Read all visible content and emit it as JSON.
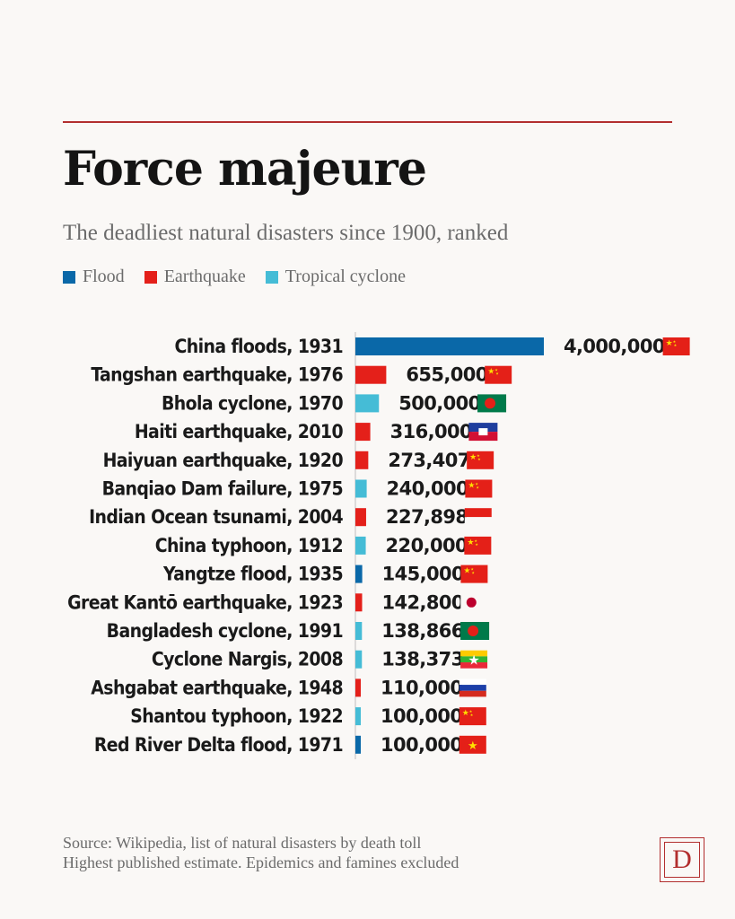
{
  "header": {
    "title": "Force majeure",
    "subtitle": "The deadliest natural disasters since 1900, ranked"
  },
  "legend": [
    {
      "label": "Flood",
      "color": "#0a68a8"
    },
    {
      "label": "Earthquake",
      "color": "#e4201a"
    },
    {
      "label": "Tropical cyclone",
      "color": "#45bcd6"
    }
  ],
  "chart_data": {
    "type": "bar",
    "orientation": "horizontal",
    "title": "Force majeure",
    "subtitle": "The deadliest natural disasters since 1900, ranked",
    "categories": [
      "China floods, 1931",
      "Tangshan earthquake, 1976",
      "Bhola cyclone, 1970",
      "Haiti earthquake, 2010",
      "Haiyuan earthquake, 1920",
      "Banqiao Dam failure, 1975",
      "Indian Ocean tsunami, 2004",
      "China typhoon, 1912",
      "Yangtze flood, 1935",
      "Great Kantō earthquake, 1923",
      "Bangladesh cyclone, 1991",
      "Cyclone Nargis, 2008",
      "Ashgabat earthquake, 1948",
      "Shantou typhoon, 1922",
      "Red River Delta flood, 1971"
    ],
    "values": [
      4000000,
      655000,
      500000,
      316000,
      273407,
      240000,
      227898,
      220000,
      145000,
      142800,
      138866,
      138373,
      110000,
      100000,
      100000
    ],
    "value_labels": [
      "4,000,000",
      "655,000",
      "500,000",
      "316,000",
      "273,407",
      "240,000",
      "227,898",
      "220,000",
      "145,000",
      "142,800",
      "138,866",
      "138,373",
      "110,000",
      "100,000",
      "100,000"
    ],
    "types": [
      "Flood",
      "Earthquake",
      "Tropical cyclone",
      "Earthquake",
      "Earthquake",
      "Tropical cyclone",
      "Earthquake",
      "Tropical cyclone",
      "Flood",
      "Earthquake",
      "Tropical cyclone",
      "Tropical cyclone",
      "Earthquake",
      "Tropical cyclone",
      "Flood"
    ],
    "flags": [
      "china",
      "china",
      "bangladesh",
      "haiti",
      "china",
      "china",
      "indonesia",
      "china",
      "china",
      "japan",
      "bangladesh",
      "myanmar",
      "russia",
      "china",
      "vietnam"
    ],
    "legend_position": "top-left",
    "grid": false
  },
  "footer": {
    "source": "Source: Wikipedia, list of natural disasters by death toll",
    "note": "Highest published estimate. Epidemics and famines excluded"
  },
  "logo": {
    "letter": "D"
  }
}
